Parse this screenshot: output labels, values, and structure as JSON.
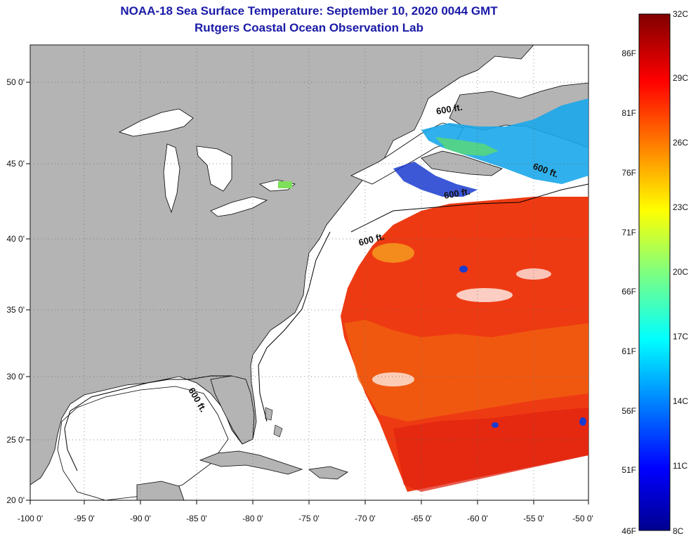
{
  "title": {
    "line1": "NOAA-18 Sea Surface Temperature:  September 10, 2020 0044 GMT",
    "line2": "Rutgers Coastal Ocean Observation Lab"
  },
  "axes": {
    "lon_labels": [
      "-100 0'",
      "-95 0'",
      "-90 0'",
      "-85 0'",
      "-80 0'",
      "-75 0'",
      "-70 0'",
      "-65 0'",
      "-60 0'",
      "-55 0'",
      "-50 0'"
    ],
    "lat_labels": [
      "50 0'",
      "45 0'",
      "40 0'",
      "35 0'",
      "30 0'",
      "25 0'",
      "20 0'"
    ]
  },
  "contour": {
    "label": "600 ft."
  },
  "colorbar": {
    "celsius": [
      "32C",
      "29C",
      "26C",
      "23C",
      "20C",
      "17C",
      "14C",
      "11C",
      "8C"
    ],
    "fahrenheit": [
      "86F",
      "81F",
      "76F",
      "71F",
      "66F",
      "61F",
      "56F",
      "51F",
      "46F"
    ],
    "min_c": 8,
    "max_c": 32
  },
  "colors": {
    "land": "#b4b4b4",
    "ocean": "#ffffff",
    "sst_warm": "#ee3a12",
    "sst_mid": "#f06010",
    "sst_cool": "#19a7ea",
    "sst_cold": "#1a3bd0"
  }
}
